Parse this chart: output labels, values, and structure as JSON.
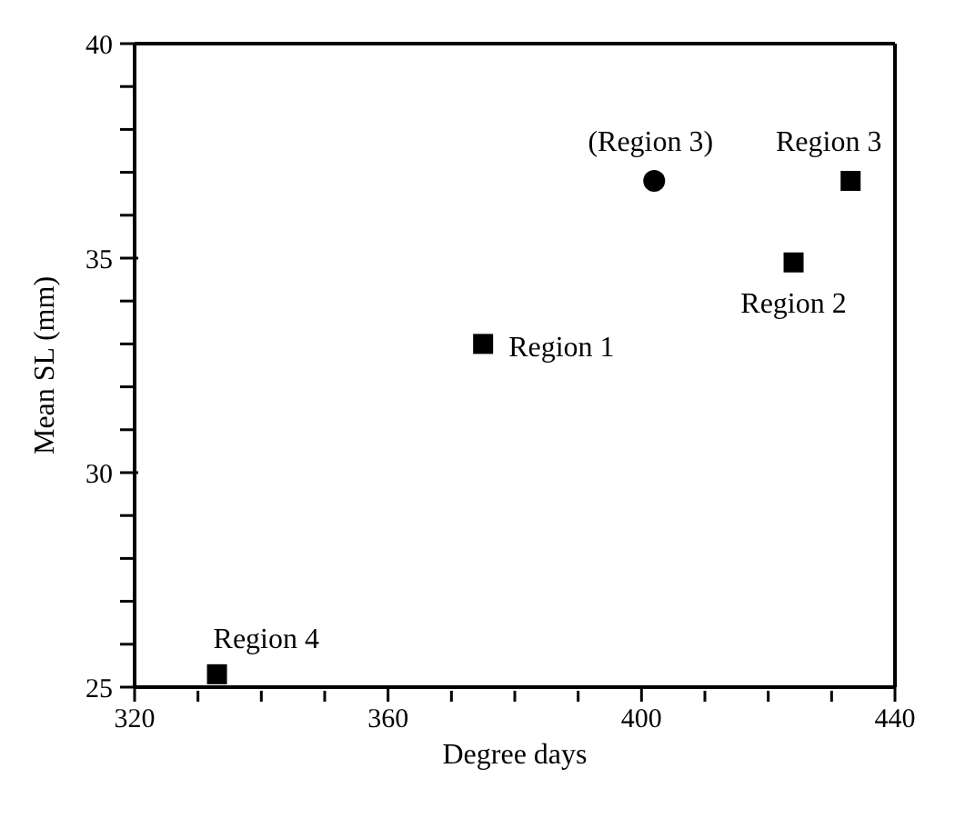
{
  "chart_data": {
    "type": "scatter",
    "xlabel": "Degree days",
    "ylabel": "Mean SL (mm)",
    "xlim": [
      320,
      440
    ],
    "ylim": [
      25,
      40
    ],
    "xticks": [
      320,
      {
        "value": 330,
        "label": null
      },
      {
        "value": 340,
        "label": null
      },
      {
        "value": 350,
        "label": null
      },
      360,
      {
        "value": 370,
        "label": null
      },
      {
        "value": 380,
        "label": null
      },
      {
        "value": 390,
        "label": null
      },
      400,
      {
        "value": 410,
        "label": null
      },
      {
        "value": 420,
        "label": null
      },
      {
        "value": 430,
        "label": null
      },
      440
    ],
    "yticks": [
      25,
      {
        "value": 26,
        "label": null
      },
      {
        "value": 27,
        "label": null
      },
      {
        "value": 28,
        "label": null
      },
      {
        "value": 29,
        "label": null
      },
      30,
      {
        "value": 31,
        "label": null
      },
      {
        "value": 32,
        "label": null
      },
      {
        "value": 33,
        "label": null
      },
      {
        "value": 34,
        "label": null
      },
      35,
      {
        "value": 36,
        "label": null
      },
      {
        "value": 37,
        "label": null
      },
      {
        "value": 38,
        "label": null
      },
      {
        "value": 39,
        "label": null
      },
      40
    ],
    "legend": false,
    "series": [
      {
        "color": "#000000",
        "marker": "square",
        "x": [
          333,
          375,
          424,
          433
        ],
        "values": [
          25.3,
          33.0,
          34.9,
          36.8
        ]
      },
      {
        "color": "#000000",
        "marker": "circle",
        "x": [
          402
        ],
        "values": [
          36.8
        ]
      }
    ],
    "annotations": [
      {
        "text": "Region 4",
        "x": 333,
        "y": 25.3
      },
      {
        "text": "Region 1",
        "x": 375,
        "y": 33.0
      },
      {
        "text": "(Region 3)",
        "x": 402,
        "y": 36.8
      },
      {
        "text": "Region 3",
        "x": 433,
        "y": 36.8
      },
      {
        "text": "Region 2",
        "x": 424,
        "y": 34.9
      }
    ]
  }
}
